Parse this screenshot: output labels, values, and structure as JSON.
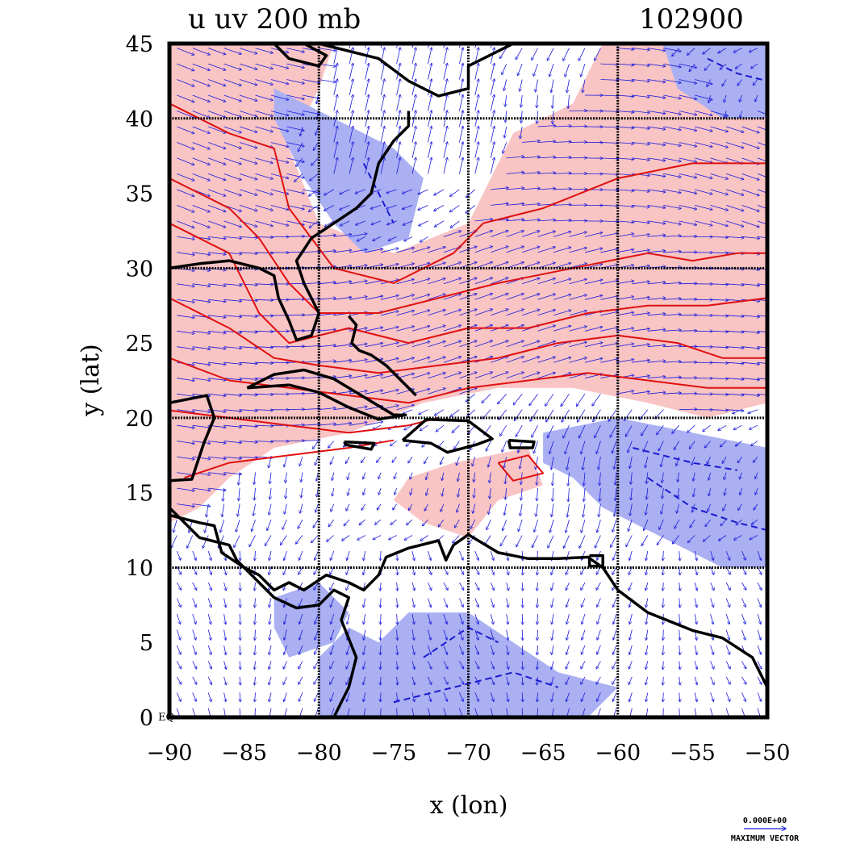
{
  "chart_data": {
    "type": "map-vector-contour",
    "title_left": "u uv 200 mb",
    "title_right": "102900",
    "xlabel": "x (lon)",
    "ylabel": "y (lat)",
    "xlim": [
      -90,
      -50
    ],
    "ylim": [
      0,
      45
    ],
    "xticks": [
      -90,
      -85,
      -80,
      -75,
      -70,
      -65,
      -60,
      -55,
      -50
    ],
    "xtick_labels": [
      "−90",
      "−85",
      "−80",
      "−75",
      "−70",
      "−65",
      "−60",
      "−55",
      "−50"
    ],
    "yticks": [
      0,
      5,
      10,
      15,
      20,
      25,
      30,
      35,
      40,
      45
    ],
    "ytick_labels": [
      "0",
      "5",
      "10",
      "15",
      "20",
      "25",
      "30",
      "35",
      "40",
      "45"
    ],
    "eq_label": "EQ",
    "gridlines_lon": [
      -80,
      -70,
      -60
    ],
    "gridlines_lat": [
      10,
      20,
      30,
      40
    ],
    "vector_legend": {
      "magnitude_label": "0.000E+00",
      "caption": "MAXIMUM VECTOR"
    },
    "regions": [
      {
        "name": "westerly-jet-band",
        "sign": "positive",
        "color": "#f8c4c4",
        "polygon": [
          [
            -90,
            45
          ],
          [
            -79,
            45
          ],
          [
            -80,
            42
          ],
          [
            -82,
            38
          ],
          [
            -80,
            33
          ],
          [
            -75,
            31
          ],
          [
            -70,
            33
          ],
          [
            -67,
            39
          ],
          [
            -63,
            41
          ],
          [
            -61,
            45
          ],
          [
            -57,
            45
          ],
          [
            -55,
            43
          ],
          [
            -53,
            40
          ],
          [
            -50,
            41
          ],
          [
            -50,
            21
          ],
          [
            -54,
            20
          ],
          [
            -58,
            21
          ],
          [
            -63,
            22
          ],
          [
            -68,
            22
          ],
          [
            -73,
            21
          ],
          [
            -78,
            19
          ],
          [
            -83,
            18
          ],
          [
            -86,
            16
          ],
          [
            -88,
            14
          ],
          [
            -90,
            13
          ]
        ]
      },
      {
        "name": "pos-caribbean-tongue",
        "sign": "positive",
        "color": "#f8c4c4",
        "polygon": [
          [
            -74,
            16
          ],
          [
            -71,
            17
          ],
          [
            -66,
            18
          ],
          [
            -65,
            15.5
          ],
          [
            -68,
            14.5
          ],
          [
            -70,
            12
          ],
          [
            -73,
            13
          ],
          [
            -75,
            14.5
          ]
        ]
      },
      {
        "name": "neg-us-east-coast",
        "sign": "negative",
        "color": "#aab0f2",
        "polygon": [
          [
            -83,
            42
          ],
          [
            -79,
            40
          ],
          [
            -75,
            38
          ],
          [
            -73,
            36
          ],
          [
            -74,
            32
          ],
          [
            -77,
            31
          ],
          [
            -79,
            33
          ],
          [
            -81,
            36
          ],
          [
            -83,
            40
          ]
        ]
      },
      {
        "name": "neg-northeast-atlantic",
        "sign": "negative",
        "color": "#aab0f2",
        "polygon": [
          [
            -57,
            45
          ],
          [
            -50,
            45
          ],
          [
            -50,
            40
          ],
          [
            -53,
            40
          ],
          [
            -56,
            42
          ]
        ]
      },
      {
        "name": "neg-east-tropical",
        "sign": "negative",
        "color": "#aab0f2",
        "polygon": [
          [
            -65,
            19
          ],
          [
            -60,
            20
          ],
          [
            -55,
            19
          ],
          [
            -50,
            18
          ],
          [
            -50,
            10
          ],
          [
            -53,
            10
          ],
          [
            -57,
            12
          ],
          [
            -61,
            14
          ],
          [
            -63,
            16
          ],
          [
            -65,
            17
          ]
        ]
      },
      {
        "name": "neg-south-america",
        "sign": "negative",
        "color": "#aab0f2",
        "polygon": [
          [
            -80,
            0
          ],
          [
            -62,
            0
          ],
          [
            -60,
            2
          ],
          [
            -64,
            3
          ],
          [
            -67,
            5
          ],
          [
            -70,
            7
          ],
          [
            -74,
            7
          ],
          [
            -76,
            5
          ],
          [
            -78,
            6
          ],
          [
            -80,
            4
          ]
        ]
      },
      {
        "name": "neg-central-america",
        "sign": "negative",
        "color": "#aab0f2",
        "polygon": [
          [
            -83,
            8
          ],
          [
            -80,
            9
          ],
          [
            -78,
            7
          ],
          [
            -79,
            5
          ],
          [
            -82,
            4
          ],
          [
            -83,
            6
          ]
        ]
      }
    ],
    "contours_positive": [
      [
        [
          -90,
          41
        ],
        [
          -86,
          39
        ],
        [
          -83,
          38
        ],
        [
          -82,
          34
        ],
        [
          -79,
          30
        ],
        [
          -75,
          29
        ],
        [
          -71,
          31
        ],
        [
          -69,
          33
        ],
        [
          -65,
          34
        ],
        [
          -60,
          36
        ],
        [
          -55,
          37
        ],
        [
          -50,
          37
        ]
      ],
      [
        [
          -90,
          36
        ],
        [
          -86,
          34
        ],
        [
          -84,
          32
        ],
        [
          -82,
          29
        ],
        [
          -80,
          27
        ],
        [
          -76,
          27
        ],
        [
          -72,
          28
        ],
        [
          -68,
          29
        ],
        [
          -63,
          30
        ],
        [
          -58,
          31
        ],
        [
          -55,
          30.5
        ],
        [
          -52,
          31
        ],
        [
          -50,
          31
        ]
      ],
      [
        [
          -90,
          33
        ],
        [
          -86,
          31
        ],
        [
          -84,
          27
        ],
        [
          -82,
          25
        ],
        [
          -78,
          26
        ],
        [
          -74,
          25
        ],
        [
          -70,
          26
        ],
        [
          -66,
          26
        ],
        [
          -62,
          27
        ],
        [
          -58,
          27.5
        ],
        [
          -54,
          27.5
        ],
        [
          -50,
          28
        ]
      ],
      [
        [
          -90,
          28
        ],
        [
          -86,
          26
        ],
        [
          -83,
          24
        ],
        [
          -80,
          23.5
        ],
        [
          -76,
          23
        ],
        [
          -72,
          23.5
        ],
        [
          -68,
          24
        ],
        [
          -64,
          25
        ],
        [
          -60,
          25.5
        ],
        [
          -56,
          25
        ],
        [
          -53,
          24
        ],
        [
          -50,
          24
        ]
      ],
      [
        [
          -90,
          24
        ],
        [
          -86,
          22.5
        ],
        [
          -82,
          22
        ],
        [
          -78,
          21.5
        ],
        [
          -74,
          21
        ],
        [
          -70,
          22
        ],
        [
          -66,
          22.5
        ],
        [
          -62,
          23
        ],
        [
          -58,
          22.5
        ],
        [
          -54,
          22
        ],
        [
          -50,
          22
        ]
      ],
      [
        [
          -90,
          20.5
        ],
        [
          -86,
          20
        ],
        [
          -82,
          19.5
        ],
        [
          -78,
          19
        ],
        [
          -74,
          19.5
        ],
        [
          -72,
          20
        ]
      ],
      [
        [
          -89,
          16
        ],
        [
          -86,
          17
        ],
        [
          -82,
          17.5
        ],
        [
          -78,
          18
        ],
        [
          -75,
          18.5
        ]
      ],
      [
        [
          -68,
          17
        ],
        [
          -66,
          17.5
        ],
        [
          -65,
          16.3
        ],
        [
          -67,
          15.8
        ],
        [
          -68,
          17
        ]
      ]
    ],
    "contours_negative": [
      [
        [
          -77,
          37
        ],
        [
          -76,
          35
        ],
        [
          -75,
          33
        ]
      ],
      [
        [
          -54,
          44
        ],
        [
          -52,
          43
        ],
        [
          -50,
          42.5
        ]
      ],
      [
        [
          -58,
          16
        ],
        [
          -55,
          14
        ],
        [
          -52,
          13
        ],
        [
          -50,
          12.5
        ]
      ],
      [
        [
          -59,
          18
        ],
        [
          -55,
          17
        ],
        [
          -52,
          16.5
        ]
      ],
      [
        [
          -75,
          1
        ],
        [
          -71,
          2
        ],
        [
          -67,
          3
        ],
        [
          -64,
          2
        ]
      ],
      [
        [
          -73,
          4
        ],
        [
          -70,
          6
        ],
        [
          -68,
          5
        ]
      ]
    ],
    "coastlines": [
      {
        "name": "north-america-east-coast",
        "points": [
          [
            -80,
            45
          ],
          [
            -76,
            44
          ],
          [
            -74,
            42.5
          ],
          [
            -72,
            41.5
          ],
          [
            -70,
            42
          ],
          [
            -70,
            43.5
          ],
          [
            -68,
            44.5
          ],
          [
            -67,
            45
          ]
        ]
      },
      {
        "name": "us-atlantic-coast",
        "points": [
          [
            -74,
            40.5
          ],
          [
            -74,
            39.5
          ],
          [
            -75,
            38.5
          ],
          [
            -76,
            37
          ],
          [
            -76.5,
            35
          ],
          [
            -77.5,
            34
          ],
          [
            -79,
            33
          ],
          [
            -80.5,
            32
          ],
          [
            -81.5,
            30.5
          ],
          [
            -81,
            29
          ],
          [
            -80,
            27
          ],
          [
            -80.5,
            25.5
          ],
          [
            -81.5,
            25.2
          ],
          [
            -82,
            26.5
          ],
          [
            -82.7,
            28
          ],
          [
            -83,
            29.5
          ],
          [
            -84,
            30
          ],
          [
            -86,
            30.5
          ],
          [
            -88,
            30.3
          ],
          [
            -90,
            30
          ]
        ]
      },
      {
        "name": "cuba",
        "points": [
          [
            -84.8,
            22
          ],
          [
            -83,
            22.9
          ],
          [
            -81,
            23.2
          ],
          [
            -79,
            22.6
          ],
          [
            -77,
            21.4
          ],
          [
            -75,
            20.2
          ],
          [
            -74.2,
            20.2
          ],
          [
            -76,
            19.9
          ],
          [
            -78,
            20.7
          ],
          [
            -80,
            21.7
          ],
          [
            -82,
            22.2
          ],
          [
            -84.8,
            22
          ]
        ]
      },
      {
        "name": "hispaniola",
        "points": [
          [
            -74.4,
            18.5
          ],
          [
            -72.8,
            19.9
          ],
          [
            -70,
            19.8
          ],
          [
            -68.4,
            18.6
          ],
          [
            -69.5,
            18.2
          ],
          [
            -71.4,
            17.7
          ],
          [
            -72.5,
            18.3
          ],
          [
            -74.4,
            18.5
          ]
        ]
      },
      {
        "name": "jamaica",
        "points": [
          [
            -78.3,
            18.4
          ],
          [
            -76.3,
            18.3
          ],
          [
            -76.5,
            17.9
          ],
          [
            -78.2,
            18.2
          ],
          [
            -78.3,
            18.4
          ]
        ]
      },
      {
        "name": "puerto-rico",
        "points": [
          [
            -67.3,
            18.5
          ],
          [
            -65.6,
            18.4
          ],
          [
            -65.7,
            18
          ],
          [
            -67.2,
            18
          ],
          [
            -67.3,
            18.5
          ]
        ]
      },
      {
        "name": "central-south-america",
        "points": [
          [
            -90,
            13.5
          ],
          [
            -88,
            13
          ],
          [
            -87,
            12.8
          ],
          [
            -86.5,
            11
          ],
          [
            -85,
            10
          ],
          [
            -84,
            9.5
          ],
          [
            -83,
            8.5
          ],
          [
            -82,
            9
          ],
          [
            -81,
            8.5
          ],
          [
            -79.5,
            9.5
          ],
          [
            -78,
            9
          ],
          [
            -77,
            8.5
          ],
          [
            -76,
            9.5
          ],
          [
            -75.5,
            10.7
          ],
          [
            -74,
            11.3
          ],
          [
            -72,
            11.8
          ],
          [
            -71.5,
            10.5
          ],
          [
            -71,
            11.5
          ],
          [
            -70,
            12.2
          ],
          [
            -68,
            11
          ],
          [
            -66,
            10.6
          ],
          [
            -64,
            10.6
          ],
          [
            -62,
            10.7
          ],
          [
            -61,
            10
          ],
          [
            -60,
            8.5
          ],
          [
            -58,
            7
          ],
          [
            -55,
            5.8
          ],
          [
            -53,
            5.3
          ],
          [
            -51,
            4
          ],
          [
            -50,
            2
          ]
        ]
      },
      {
        "name": "pacific-coast",
        "points": [
          [
            -90,
            14
          ],
          [
            -88,
            12
          ],
          [
            -86,
            11.5
          ],
          [
            -85.5,
            10.5
          ],
          [
            -84,
            9
          ],
          [
            -83,
            8
          ],
          [
            -81.5,
            7.3
          ],
          [
            -80,
            7.5
          ],
          [
            -79,
            8.5
          ],
          [
            -78,
            8
          ],
          [
            -78.5,
            6.5
          ],
          [
            -77.5,
            4
          ],
          [
            -78,
            2
          ],
          [
            -78.5,
            1
          ],
          [
            -79,
            0
          ]
        ]
      },
      {
        "name": "yucatan",
        "points": [
          [
            -90,
            21
          ],
          [
            -87.5,
            21.5
          ],
          [
            -87,
            20
          ],
          [
            -87.7,
            18.3
          ],
          [
            -88.2,
            16.8
          ],
          [
            -88.5,
            15.9
          ],
          [
            -90,
            15.8
          ]
        ]
      },
      {
        "name": "bahamas",
        "points": [
          [
            -78,
            26.8
          ],
          [
            -77.5,
            26.2
          ],
          [
            -77.8,
            25
          ],
          [
            -77.3,
            24.5
          ],
          [
            -76.5,
            24.2
          ],
          [
            -75.5,
            23.5
          ],
          [
            -74.5,
            22.5
          ],
          [
            -73.5,
            21.5
          ]
        ]
      },
      {
        "name": "great-lakes",
        "points": [
          [
            -83,
            45
          ],
          [
            -82,
            44
          ],
          [
            -80,
            43.5
          ],
          [
            -79.5,
            44.2
          ],
          [
            -81,
            45
          ]
        ]
      },
      {
        "name": "trinidad",
        "points": [
          [
            -61.9,
            10.8
          ],
          [
            -61,
            10.8
          ],
          [
            -61,
            10.1
          ],
          [
            -61.9,
            10.1
          ],
          [
            -61.9,
            10.8
          ]
        ]
      }
    ]
  }
}
